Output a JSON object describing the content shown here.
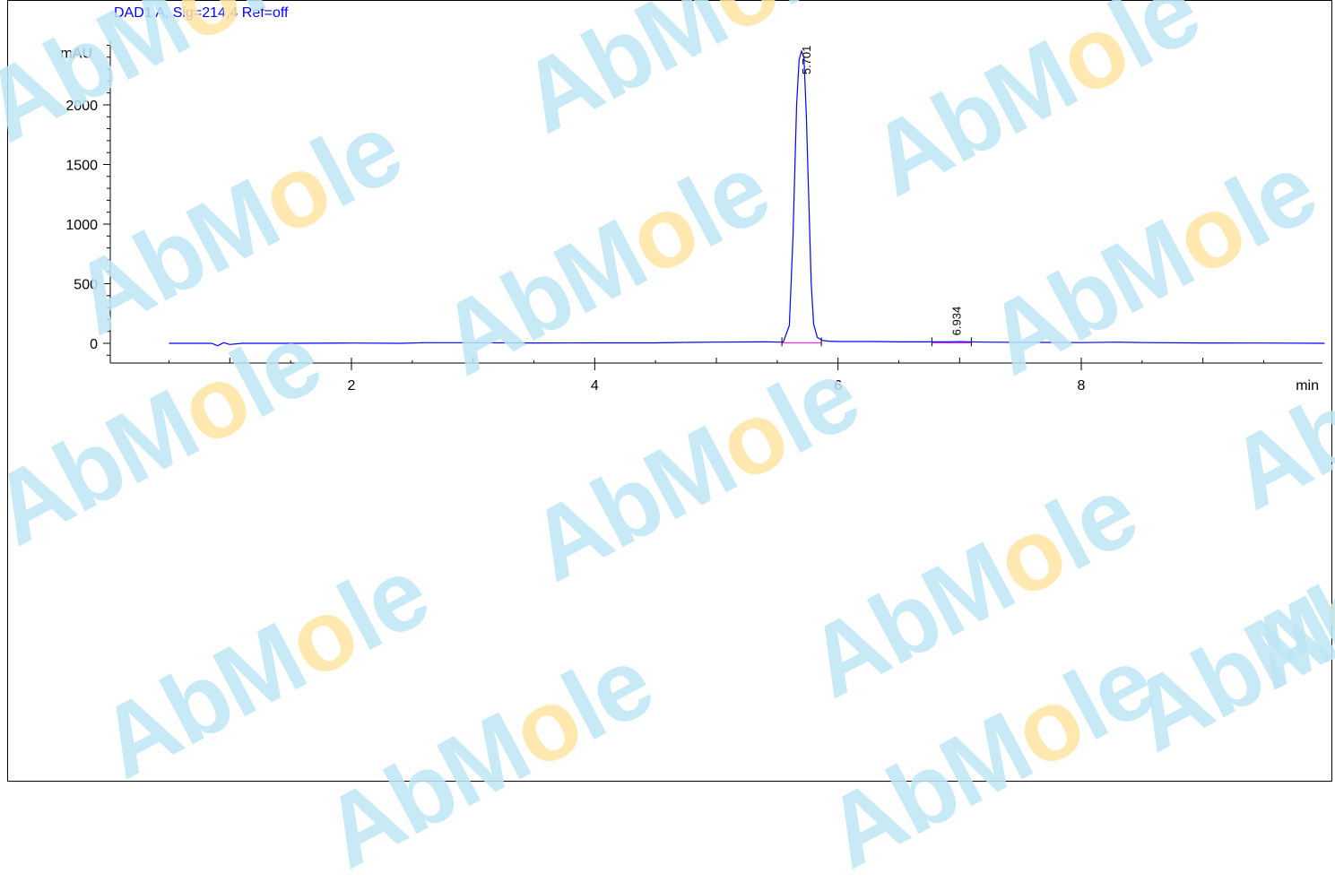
{
  "signal_title": "DAD1 A, Sig=214,4 Ref=off",
  "watermark": {
    "text_parts": [
      "AbM",
      "o",
      "le"
    ]
  },
  "colors": {
    "trace": "#0000ff",
    "baseline_marker": "#ff00ff",
    "axis": "#000000",
    "watermark_blue": "#bfe6f5",
    "watermark_yellow": "#ffe6a3"
  },
  "chart_data": {
    "type": "line",
    "title": "DAD1 A, Sig=214,4 Ref=off",
    "xlabel": "min",
    "ylabel": "mAU",
    "xlim": [
      0.5,
      10.0
    ],
    "ylim": [
      -100,
      2500
    ],
    "x_ticks": [
      2,
      4,
      6,
      8
    ],
    "y_ticks": [
      0,
      500,
      1000,
      1500,
      2000
    ],
    "series": [
      {
        "x": [
          0.5,
          0.85,
          0.9,
          0.95,
          1.0,
          1.1,
          1.5,
          2.0,
          2.4,
          2.6,
          2.9,
          3.5,
          4.0,
          4.5,
          4.8,
          5.0,
          5.4,
          5.55,
          5.6,
          5.63,
          5.66,
          5.68,
          5.7,
          5.72,
          5.74,
          5.76,
          5.78,
          5.8,
          5.83,
          5.87,
          5.92,
          6.0,
          6.3,
          6.5,
          6.9,
          7.0,
          7.2,
          8.0,
          8.3,
          8.5,
          9.0,
          9.5,
          10.0
        ],
        "y": [
          0,
          0,
          -20,
          5,
          -10,
          0,
          0,
          2,
          0,
          5,
          5,
          3,
          4,
          4,
          8,
          10,
          12,
          10,
          150,
          900,
          2000,
          2380,
          2450,
          2400,
          1900,
          1200,
          500,
          160,
          50,
          25,
          18,
          15,
          15,
          12,
          12,
          14,
          10,
          6,
          10,
          6,
          3,
          2,
          0
        ]
      }
    ],
    "peaks": [
      {
        "rt": 5.701,
        "label": "5.701"
      },
      {
        "rt": 6.934,
        "label": "6.934"
      }
    ]
  }
}
